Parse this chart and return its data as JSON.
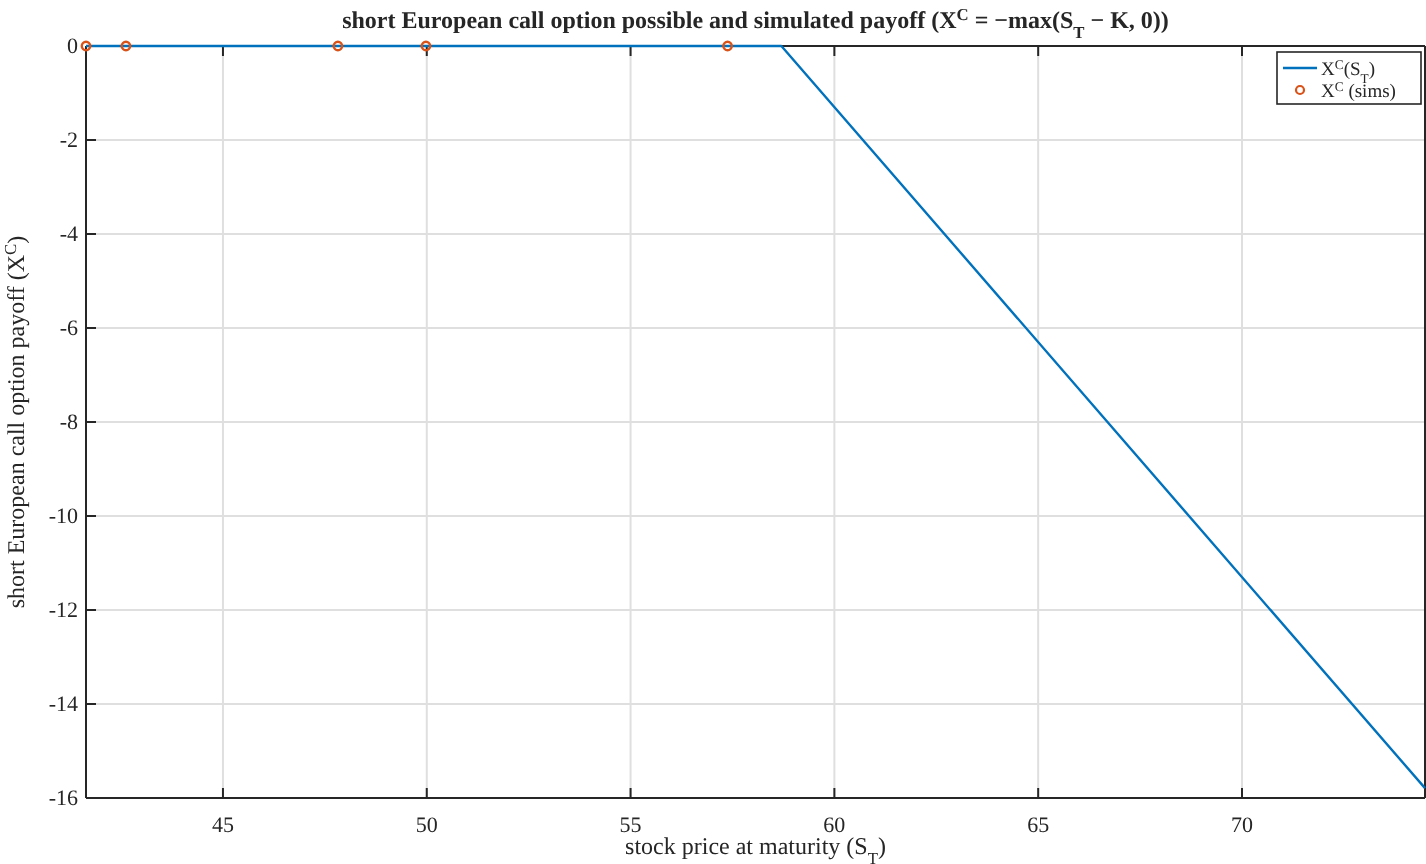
{
  "chart_data": {
    "type": "line",
    "title": "short European call option possible and simulated payoff (X$^{C}$ = −max(S$_{T}$ − K, 0))",
    "xlabel": "stock price at maturity (S$_{T}$)",
    "ylabel": "short European call option payoff (X$^{C}$)",
    "xlim": [
      41.64,
      74.49
    ],
    "xticks": [
      45,
      50,
      55,
      60,
      65,
      70
    ],
    "ylim": [
      -16,
      0
    ],
    "yticks": [
      -16,
      -14,
      -12,
      -10,
      -8,
      -6,
      -4,
      -2,
      0
    ],
    "grid": true,
    "legend": "top right",
    "series": [
      {
        "name": "X$^{C}$(S$_{T}$)",
        "type": "line",
        "color": "#0072bd",
        "x": [
          41.64,
          58.7,
          74.49
        ],
        "values": [
          0,
          0,
          -15.79
        ],
        "line_style": "solid",
        "marker": "none"
      },
      {
        "name": "X$^{C}$ (sims)",
        "type": "scatter",
        "color": "#d95319",
        "x": [
          41.64,
          42.62,
          47.82,
          49.98,
          57.38
        ],
        "values": [
          0,
          0,
          0,
          0,
          0
        ],
        "marker": "circle"
      }
    ]
  }
}
